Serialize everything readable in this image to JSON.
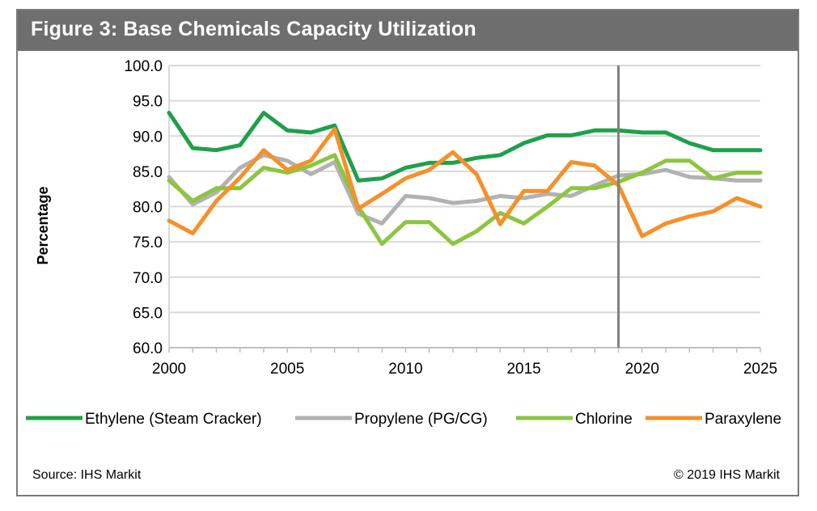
{
  "title": "Figure 3: Base Chemicals Capacity Utilization",
  "source": "Source: IHS Markit",
  "copyright": "© 2019 IHS Markit",
  "colors": {
    "title_bg": "#6e6e6e",
    "grid": "#d9d9d9",
    "ethylene": "#1fa04b",
    "propylene": "#b2b2b2",
    "chlorine": "#8cc63f",
    "paraxylene": "#f5902a",
    "divider": "#808080"
  },
  "chart_data": {
    "type": "line",
    "ylabel": "Percentage",
    "xlabel": "",
    "ylim": [
      60,
      100
    ],
    "xlim": [
      2000,
      2025
    ],
    "y_ticks": [
      "60.0",
      "65.0",
      "70.0",
      "75.0",
      "80.0",
      "85.0",
      "90.0",
      "95.0",
      "100.0"
    ],
    "x_ticks": [
      "2000",
      "2005",
      "2010",
      "2015",
      "2020",
      "2025"
    ],
    "grid": "horizontal",
    "vertical_marker_x": 2019,
    "legend_position": "bottom",
    "x": [
      2000,
      2001,
      2002,
      2003,
      2004,
      2005,
      2006,
      2007,
      2008,
      2009,
      2010,
      2011,
      2012,
      2013,
      2014,
      2015,
      2016,
      2017,
      2018,
      2019,
      2020,
      2021,
      2022,
      2023,
      2024,
      2025
    ],
    "series": [
      {
        "name": "Ethylene (Steam Cracker)",
        "color_key": "ethylene",
        "values": [
          93.3,
          88.3,
          88.0,
          88.7,
          93.3,
          90.8,
          90.5,
          91.5,
          83.7,
          84.0,
          85.5,
          86.2,
          86.2,
          86.9,
          87.3,
          89.0,
          90.1,
          90.1,
          90.8,
          90.8,
          90.5,
          90.5,
          89.0,
          88.0,
          88.0,
          88.0
        ]
      },
      {
        "name": "Propylene (PG/CG)",
        "color_key": "propylene",
        "values": [
          84.2,
          80.3,
          82.0,
          85.5,
          87.3,
          86.5,
          84.6,
          86.3,
          79.0,
          77.6,
          81.5,
          81.2,
          80.5,
          80.8,
          81.5,
          81.2,
          81.8,
          81.5,
          83.0,
          84.4,
          84.6,
          85.2,
          84.2,
          84.0,
          83.7,
          83.7
        ]
      },
      {
        "name": "Chlorine",
        "color_key": "chlorine",
        "values": [
          83.7,
          80.8,
          82.6,
          82.6,
          85.5,
          84.8,
          85.8,
          87.3,
          80.0,
          74.7,
          77.8,
          77.8,
          74.7,
          76.5,
          79.1,
          77.6,
          80.0,
          82.6,
          82.6,
          83.5,
          84.8,
          86.5,
          86.5,
          84.0,
          84.8,
          84.8
        ]
      },
      {
        "name": "Paraxylene",
        "color_key": "paraxylene",
        "values": [
          78.0,
          76.2,
          80.8,
          84.1,
          88.0,
          85.2,
          86.5,
          91.0,
          79.7,
          81.8,
          84.0,
          85.2,
          87.7,
          84.6,
          77.5,
          82.2,
          82.2,
          86.3,
          85.8,
          83.0,
          75.8,
          77.6,
          78.6,
          79.3,
          81.2,
          80.0
        ]
      }
    ]
  }
}
